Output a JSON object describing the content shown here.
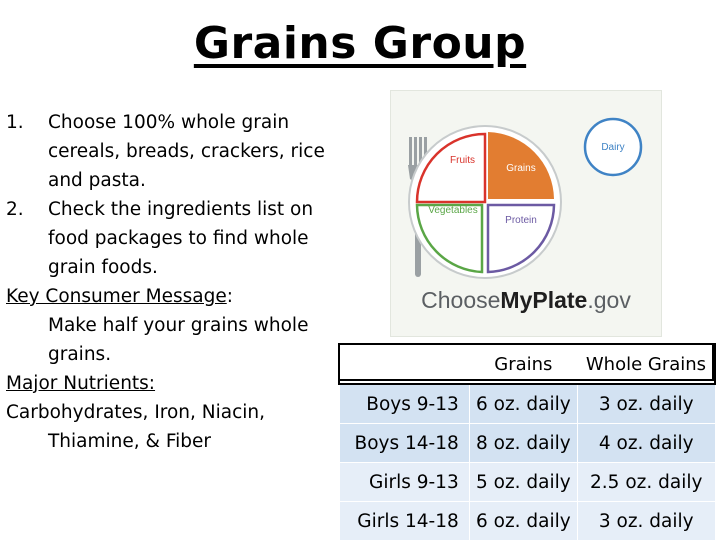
{
  "title": "Grains Group",
  "list": [
    {
      "num": "1.",
      "text": "Choose 100% whole grain cereals, breads, crackers, rice and pasta."
    },
    {
      "num": "2.",
      "text": "Check the ingredients list on food packages to find whole grain foods."
    }
  ],
  "key_message": {
    "label": "Key Consumer Message",
    "colon": ":",
    "text": "Make half your grains whole grains."
  },
  "nutrients": {
    "label": "Major Nutrients:",
    "text": "Carbohydrates, Iron, Niacin, Thiamine, & Fiber"
  },
  "plate": {
    "sections": [
      "Fruits",
      "Grains",
      "Vegetables",
      "Protein",
      "Dairy"
    ],
    "logo_prefix": "Choose",
    "logo_bold": "MyPlate",
    "logo_suffix": ".gov",
    "colors": {
      "fruits": "#d9332b",
      "grains": "#e27d31",
      "vegetables": "#5aa646",
      "protein": "#6c5aa3",
      "dairy": "#3f83c5"
    }
  },
  "table": {
    "headers": [
      "Grains",
      "Whole Grains"
    ],
    "rows": [
      {
        "label": "Boys 9-13",
        "grains": "6 oz. daily",
        "whole": "3 oz. daily"
      },
      {
        "label": "Boys 14-18",
        "grains": "8 oz. daily",
        "whole": "4 oz. daily"
      },
      {
        "label": "Girls 9-13",
        "grains": "5 oz. daily",
        "whole": "2.5 oz. daily"
      },
      {
        "label": "Girls 14-18",
        "grains": "6 oz. daily",
        "whole": "3 oz. daily"
      }
    ]
  }
}
